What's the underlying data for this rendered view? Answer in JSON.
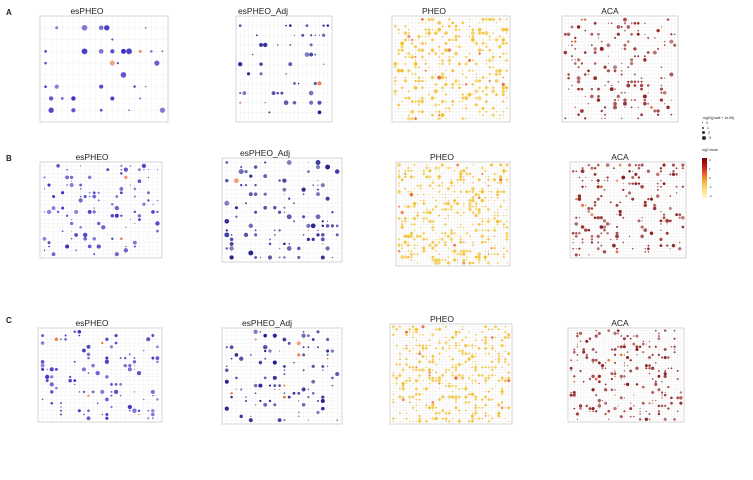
{
  "figure": {
    "row_letters": [
      "A",
      "B",
      "C"
    ],
    "panel_titles": [
      "esPHEO",
      "esPHEO_Adj",
      "PHEO",
      "ACA"
    ]
  },
  "legend": {
    "size_title": "-log10(pvals + 1e-06)",
    "size_ticks": [
      "0",
      "1",
      "2",
      "3"
    ],
    "color_title": "log2 mean",
    "color_ticks": [
      "2",
      "1",
      "0",
      "-1",
      "-2"
    ],
    "colors": {
      "esPHEO": "#3a2fbf",
      "esPHEO_Adj": "#1e1a8c",
      "PHEO": "#f1c232",
      "ACA": "#8b1c1c",
      "highlight": "#e8632a"
    }
  },
  "chart_data": [
    {
      "type": "scatter",
      "panel": "A1",
      "title": "esPHEO",
      "rows": 8,
      "cols": 22,
      "color": "#3a2fbf"
    },
    {
      "type": "scatter",
      "panel": "A2",
      "title": "esPHEO_Adj",
      "rows": 10,
      "cols": 22,
      "color": "#1e1a8c"
    },
    {
      "type": "scatter",
      "panel": "A3",
      "title": "PHEO",
      "rows": 30,
      "cols": 34,
      "color": "#f1c232"
    },
    {
      "type": "scatter",
      "panel": "A4",
      "title": "ACA",
      "rows": 28,
      "cols": 34,
      "color": "#8b1c1c"
    },
    {
      "type": "scatter",
      "panel": "B1",
      "title": "esPHEO",
      "rows": 24,
      "cols": 26,
      "color": "#3a2fbf"
    },
    {
      "type": "scatter",
      "panel": "B2",
      "title": "esPHEO_Adj",
      "rows": 22,
      "cols": 24,
      "color": "#1e1a8c"
    },
    {
      "type": "scatter",
      "panel": "B3",
      "title": "PHEO",
      "rows": 34,
      "cols": 36,
      "color": "#f1c232"
    },
    {
      "type": "scatter",
      "panel": "B4",
      "title": "ACA",
      "rows": 30,
      "cols": 36,
      "color": "#8b1c1c"
    },
    {
      "type": "scatter",
      "panel": "C1",
      "title": "esPHEO",
      "rows": 24,
      "cols": 26,
      "color": "#3a2fbf"
    },
    {
      "type": "scatter",
      "panel": "C2",
      "title": "esPHEO_Adj",
      "rows": 24,
      "cols": 24,
      "color": "#1e1a8c"
    },
    {
      "type": "scatter",
      "panel": "C3",
      "title": "PHEO",
      "rows": 36,
      "cols": 36,
      "color": "#f1c232"
    },
    {
      "type": "scatter",
      "panel": "C4",
      "title": "ACA",
      "rows": 34,
      "cols": 36,
      "color": "#8b1c1c"
    }
  ]
}
